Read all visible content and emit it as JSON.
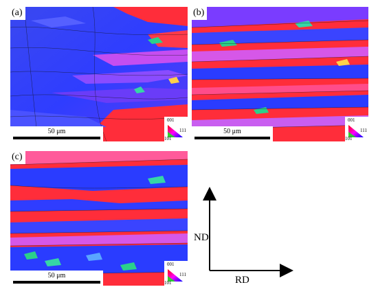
{
  "panels": [
    {
      "label": "(a)",
      "scalebar": "50 μm",
      "ipf": {
        "top": "001",
        "right": "111",
        "bottom": "101"
      }
    },
    {
      "label": "(b)",
      "scalebar": "50 μm",
      "ipf": {
        "top": "001",
        "right": "111",
        "bottom": "101"
      }
    },
    {
      "label": "(c)",
      "scalebar": "50 μm",
      "ipf": {
        "top": "001",
        "right": "111",
        "bottom": "101"
      }
    }
  ],
  "axes": {
    "vertical_label": "ND",
    "horizontal_label": "RD"
  },
  "colors": {
    "red": "#ff2d3a",
    "blue": "#2a3cff",
    "magenta": "#d657e8",
    "violet": "#7b3cff",
    "green": "#2bd08a",
    "boundary": "#111111"
  }
}
